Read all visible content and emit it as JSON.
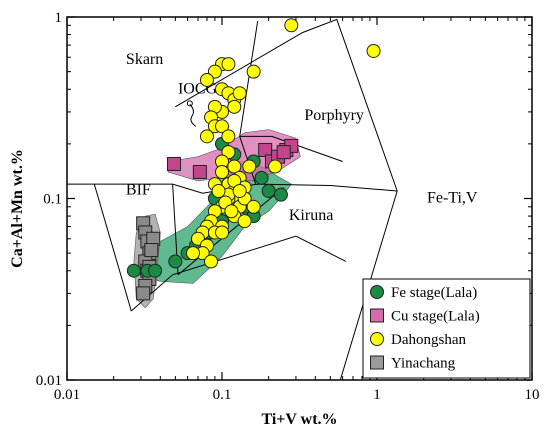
{
  "chart_data": {
    "type": "scatter",
    "title": "",
    "xlabel": "Ti+V wt.%",
    "ylabel": "Ca+Al+Mn wt.%",
    "x_scale": "log",
    "y_scale": "log",
    "xlim": [
      0.01,
      10
    ],
    "ylim": [
      0.01,
      1
    ],
    "x_ticks": [
      "0.01",
      "0.1",
      "1",
      "10"
    ],
    "y_ticks": [
      "0.01",
      "0.1",
      "1"
    ],
    "grid": false,
    "legend_position": "bottom-right",
    "regions": [
      {
        "name": "Skarn",
        "label_at": [
          0.024,
          0.55
        ]
      },
      {
        "name": "IOCG",
        "label_at": [
          0.052,
          0.38
        ]
      },
      {
        "name": "Porphyry",
        "label_at": [
          0.34,
          0.27
        ]
      },
      {
        "name": "BIF",
        "label_at": [
          0.024,
          0.105
        ]
      },
      {
        "name": "Kiruna",
        "label_at": [
          0.27,
          0.076
        ]
      },
      {
        "name": "Fe-Ti,V",
        "label_at": [
          2.1,
          0.095
        ]
      }
    ],
    "boundaries": [
      [
        [
          0.01,
          0.12
        ],
        [
          0.015,
          0.12
        ],
        [
          0.048,
          0.12
        ],
        [
          0.075,
          0.107
        ],
        [
          0.17,
          0.12
        ],
        [
          0.5,
          0.118
        ],
        [
          1.35,
          0.11
        ]
      ],
      [
        [
          0.015,
          0.12
        ],
        [
          0.026,
          0.024
        ]
      ],
      [
        [
          0.026,
          0.024
        ],
        [
          0.048,
          0.038
        ],
        [
          0.3,
          0.062
        ],
        [
          0.63,
          0.045
        ]
      ],
      [
        [
          0.048,
          0.12
        ],
        [
          0.052,
          0.038
        ]
      ],
      [
        [
          0.052,
          0.038
        ],
        [
          0.25,
          0.115
        ]
      ],
      [
        [
          0.05,
          0.32
        ],
        [
          0.33,
          0.82
        ],
        [
          0.55,
          0.97
        ],
        [
          1.35,
          0.11
        ]
      ],
      [
        [
          0.17,
          0.95
        ],
        [
          0.13,
          0.22
        ],
        [
          0.165,
          0.12
        ]
      ],
      [
        [
          0.13,
          0.22
        ],
        [
          0.21,
          0.22
        ],
        [
          0.6,
          0.16
        ]
      ],
      [
        [
          1.35,
          0.11
        ],
        [
          0.58,
          0.01
        ]
      ]
    ],
    "series": [
      {
        "name": "Fe stage(Lala)",
        "color": "#1a8a45",
        "marker": "circle",
        "field_color": "#2aa36a",
        "field": [
          [
            0.028,
            0.038
          ],
          [
            0.04,
            0.035
          ],
          [
            0.065,
            0.034
          ],
          [
            0.1,
            0.048
          ],
          [
            0.14,
            0.07
          ],
          [
            0.2,
            0.085
          ],
          [
            0.25,
            0.105
          ],
          [
            0.28,
            0.12
          ],
          [
            0.22,
            0.135
          ],
          [
            0.16,
            0.16
          ],
          [
            0.11,
            0.16
          ],
          [
            0.095,
            0.135
          ],
          [
            0.085,
            0.095
          ],
          [
            0.06,
            0.07
          ],
          [
            0.04,
            0.058
          ],
          [
            0.03,
            0.047
          ]
        ],
        "points": [
          [
            0.027,
            0.04
          ],
          [
            0.033,
            0.04
          ],
          [
            0.037,
            0.04
          ],
          [
            0.05,
            0.045
          ],
          [
            0.06,
            0.05
          ],
          [
            0.068,
            0.055
          ],
          [
            0.075,
            0.06
          ],
          [
            0.085,
            0.065
          ],
          [
            0.1,
            0.075
          ],
          [
            0.12,
            0.085
          ],
          [
            0.14,
            0.1
          ],
          [
            0.16,
            0.08
          ],
          [
            0.2,
            0.11
          ],
          [
            0.24,
            0.105
          ],
          [
            0.1,
            0.2
          ],
          [
            0.12,
            0.175
          ],
          [
            0.16,
            0.16
          ],
          [
            0.18,
            0.13
          ],
          [
            0.13,
            0.13
          ],
          [
            0.11,
            0.12
          ],
          [
            0.095,
            0.11
          ],
          [
            0.14,
            0.09
          ],
          [
            0.09,
            0.1
          ]
        ]
      },
      {
        "name": "Cu stage(Lala)",
        "color": "#c2468c",
        "marker": "square",
        "field_color": "#d86aae",
        "field": [
          [
            0.045,
            0.16
          ],
          [
            0.07,
            0.17
          ],
          [
            0.1,
            0.19
          ],
          [
            0.14,
            0.23
          ],
          [
            0.2,
            0.24
          ],
          [
            0.3,
            0.215
          ],
          [
            0.32,
            0.17
          ],
          [
            0.24,
            0.145
          ],
          [
            0.16,
            0.125
          ],
          [
            0.1,
            0.13
          ],
          [
            0.07,
            0.125
          ],
          [
            0.045,
            0.14
          ]
        ],
        "points": [
          [
            0.049,
            0.155
          ],
          [
            0.072,
            0.14
          ],
          [
            0.19,
            0.185
          ],
          [
            0.21,
            0.16
          ],
          [
            0.23,
            0.17
          ],
          [
            0.26,
            0.185
          ],
          [
            0.28,
            0.195
          ],
          [
            0.25,
            0.18
          ]
        ]
      },
      {
        "name": "Dahongshan",
        "color": "#ffff00",
        "marker": "circle",
        "field_color": null,
        "field": [],
        "points": [
          [
            0.1,
            0.55
          ],
          [
            0.11,
            0.55
          ],
          [
            0.09,
            0.5
          ],
          [
            0.08,
            0.45
          ],
          [
            0.1,
            0.4
          ],
          [
            0.11,
            0.38
          ],
          [
            0.12,
            0.35
          ],
          [
            0.13,
            0.38
          ],
          [
            0.12,
            0.32
          ],
          [
            0.1,
            0.3
          ],
          [
            0.09,
            0.32
          ],
          [
            0.085,
            0.28
          ],
          [
            0.09,
            0.25
          ],
          [
            0.1,
            0.25
          ],
          [
            0.11,
            0.22
          ],
          [
            0.08,
            0.22
          ],
          [
            0.11,
            0.18
          ],
          [
            0.1,
            0.16
          ],
          [
            0.12,
            0.15
          ],
          [
            0.13,
            0.13
          ],
          [
            0.11,
            0.12
          ],
          [
            0.12,
            0.11
          ],
          [
            0.13,
            0.1
          ],
          [
            0.11,
            0.1
          ],
          [
            0.1,
            0.09
          ],
          [
            0.09,
            0.085
          ],
          [
            0.085,
            0.075
          ],
          [
            0.08,
            0.07
          ],
          [
            0.075,
            0.065
          ],
          [
            0.07,
            0.06
          ],
          [
            0.08,
            0.055
          ],
          [
            0.075,
            0.05
          ],
          [
            0.085,
            0.045
          ],
          [
            0.16,
            0.5
          ],
          [
            0.28,
            0.9
          ],
          [
            0.95,
            0.65
          ],
          [
            0.15,
            0.15
          ],
          [
            0.14,
            0.115
          ],
          [
            0.13,
            0.09
          ],
          [
            0.12,
            0.08
          ],
          [
            0.1,
            0.07
          ],
          [
            0.09,
            0.065
          ],
          [
            0.065,
            0.05
          ],
          [
            0.1,
            0.065
          ],
          [
            0.11,
            0.105
          ],
          [
            0.12,
            0.125
          ],
          [
            0.14,
            0.1
          ],
          [
            0.13,
            0.11
          ],
          [
            0.1,
            0.14
          ],
          [
            0.09,
            0.12
          ],
          [
            0.095,
            0.11
          ],
          [
            0.105,
            0.095
          ],
          [
            0.115,
            0.085
          ],
          [
            0.14,
            0.075
          ],
          [
            0.22,
            0.15
          ],
          [
            0.16,
            0.09
          ]
        ]
      },
      {
        "name": "Yinachang",
        "color": "#8a8a8a",
        "marker": "square",
        "field_color": "#9a9a9a",
        "field": [
          [
            0.028,
            0.065
          ],
          [
            0.032,
            0.08
          ],
          [
            0.037,
            0.082
          ],
          [
            0.04,
            0.065
          ],
          [
            0.038,
            0.04
          ],
          [
            0.036,
            0.028
          ],
          [
            0.032,
            0.025
          ],
          [
            0.028,
            0.028
          ],
          [
            0.027,
            0.045
          ]
        ],
        "points": [
          [
            0.031,
            0.073
          ],
          [
            0.032,
            0.065
          ],
          [
            0.033,
            0.058
          ],
          [
            0.034,
            0.05
          ],
          [
            0.032,
            0.045
          ],
          [
            0.033,
            0.04
          ],
          [
            0.034,
            0.036
          ],
          [
            0.032,
            0.033
          ],
          [
            0.031,
            0.03
          ],
          [
            0.036,
            0.06
          ],
          [
            0.035,
            0.052
          ],
          [
            0.034,
            0.042
          ]
        ]
      }
    ]
  }
}
